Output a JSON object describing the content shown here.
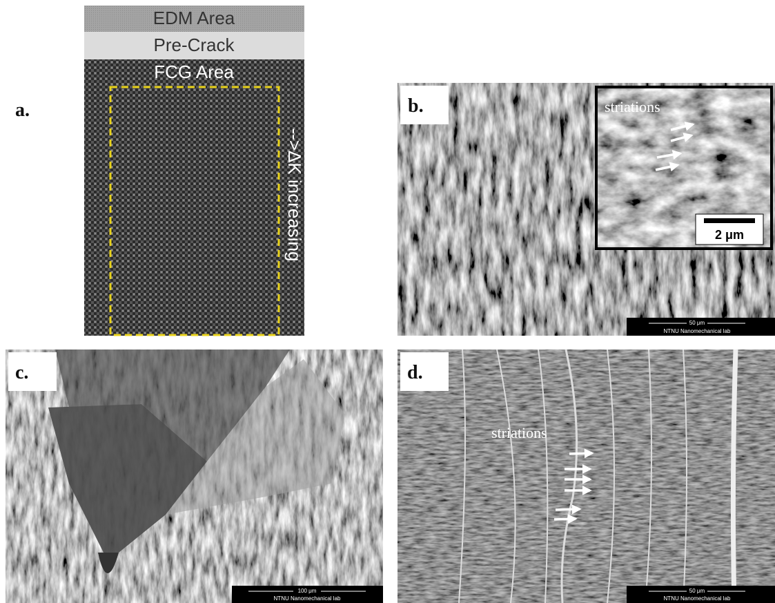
{
  "panels": [
    {
      "label": "a.",
      "regions": [
        "EDM Area",
        "Pre-Crack",
        "FCG Area"
      ],
      "direction_note": "-->ΔK increasing"
    },
    {
      "label": "b.",
      "inset": {
        "annotation": "striations",
        "scale_bar": "2 μm"
      },
      "scale_bar": "50 μm",
      "credit": "NTNU Nanomechanical lab"
    },
    {
      "label": "c.",
      "scale_bar": "100 μm",
      "credit": "NTNU Nanomechanical lab"
    },
    {
      "label": "d.",
      "annotation": "striations",
      "scale_bar": "50 μm",
      "credit": "NTNU Nanomechanical lab"
    }
  ]
}
